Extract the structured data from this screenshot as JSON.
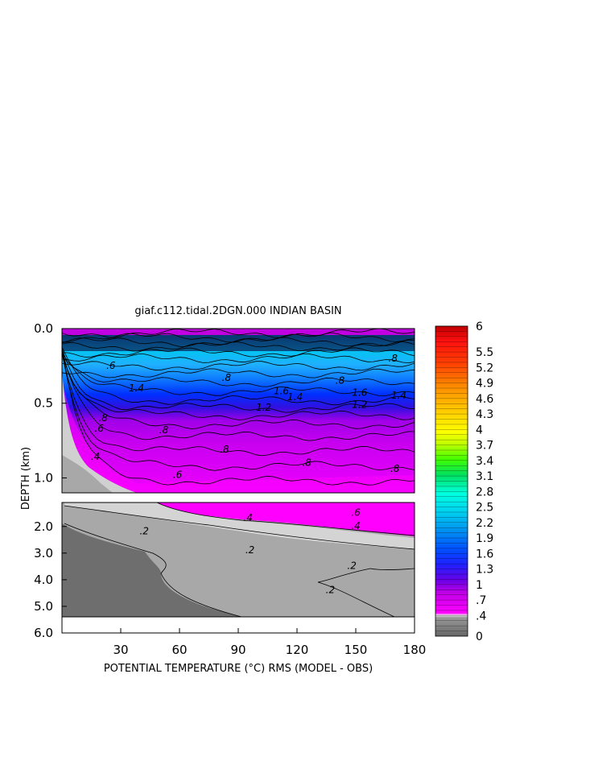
{
  "chart_data": {
    "type": "heatmap",
    "title": "giaf.c112.tidal.2DGN.000 INDIAN BASIN",
    "xlabel": "POTENTIAL TEMPERATURE (°C) RMS (MODEL - OBS)",
    "ylabel": "DEPTH (km)",
    "xlim": [
      0,
      180
    ],
    "x_ticks": [
      "30",
      "60",
      "90",
      "120",
      "150",
      "180"
    ],
    "upper_panel": {
      "ylim": [
        0.0,
        1.1
      ],
      "y_ticks": [
        "0.0",
        "0.5",
        "1.0"
      ]
    },
    "lower_panel": {
      "ylim": [
        1.1,
        6.0
      ],
      "y_ticks": [
        "2.0",
        "3.0",
        "4.0",
        "5.0",
        "6.0"
      ]
    },
    "colorbar": {
      "range": [
        0,
        6
      ],
      "labels": [
        "6",
        "5.5",
        "5.2",
        "4.9",
        "4.6",
        "4.3",
        "4",
        "3.7",
        "3.4",
        "3.1",
        "2.8",
        "2.5",
        "2.2",
        "1.9",
        "1.6",
        "1.3",
        "1",
        ".7",
        ".4",
        "0"
      ],
      "label_values": [
        6,
        5.5,
        5.2,
        4.9,
        4.6,
        4.3,
        4,
        3.7,
        3.4,
        3.1,
        2.8,
        2.5,
        2.2,
        1.9,
        1.6,
        1.3,
        1,
        0.7,
        0.4,
        0
      ]
    },
    "contour_labels_upper": [
      {
        "text": ".6",
        "x": 25,
        "d": 0.27
      },
      {
        "text": "1.4",
        "x": 38,
        "d": 0.42
      },
      {
        "text": ".8",
        "x": 84,
        "d": 0.35
      },
      {
        "text": "1.6",
        "x": 112,
        "d": 0.44
      },
      {
        "text": "1.4",
        "x": 119,
        "d": 0.48
      },
      {
        "text": ".8",
        "x": 142,
        "d": 0.37
      },
      {
        "text": "1.6",
        "x": 152,
        "d": 0.45
      },
      {
        "text": "1.4",
        "x": 172,
        "d": 0.47
      },
      {
        "text": ".8",
        "x": 169,
        "d": 0.22
      },
      {
        "text": "1.2",
        "x": 103,
        "d": 0.55
      },
      {
        "text": "1.2",
        "x": 152,
        "d": 0.53
      },
      {
        "text": ".6",
        "x": 19,
        "d": 0.69
      },
      {
        "text": ".8",
        "x": 52,
        "d": 0.7
      },
      {
        "text": ".8",
        "x": 83,
        "d": 0.83
      },
      {
        "text": ".8",
        "x": 125,
        "d": 0.92
      },
      {
        "text": ".8",
        "x": 170,
        "d": 0.96
      },
      {
        "text": ".6",
        "x": 59,
        "d": 1.0
      },
      {
        "text": ".4",
        "x": 17,
        "d": 0.88
      },
      {
        "text": ".8",
        "x": 21,
        "d": 0.62
      }
    ],
    "contour_labels_lower": [
      {
        "text": ".4",
        "x": 95,
        "d": 1.8
      },
      {
        "text": ".6",
        "x": 150,
        "d": 1.6
      },
      {
        "text": ".4",
        "x": 150,
        "d": 2.1
      },
      {
        "text": ".2",
        "x": 42,
        "d": 2.3
      },
      {
        "text": ".2",
        "x": 96,
        "d": 3.0
      },
      {
        "text": ".2",
        "x": 148,
        "d": 3.6
      },
      {
        "text": ".2",
        "x": 137,
        "d": 4.5
      }
    ]
  }
}
